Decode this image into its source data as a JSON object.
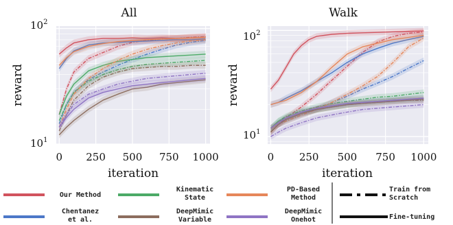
{
  "chart_data": [
    {
      "type": "line",
      "title": "All",
      "xlabel": "iteration",
      "ylabel": "reward",
      "yscale": "log",
      "xlim": [
        -20,
        1030
      ],
      "ylim": [
        10,
        105
      ],
      "xticks": [
        "0",
        "250",
        "500",
        "750",
        "1000"
      ],
      "yticks": [
        "10^1",
        "10^2"
      ],
      "grid": true,
      "series": [
        {
          "name": "Our Method",
          "variant": "Fine-tuning",
          "x": [
            0,
            50,
            100,
            200,
            300,
            400,
            500,
            600,
            700,
            800,
            900,
            1000
          ],
          "y": [
            60,
            68,
            75,
            80,
            82,
            82,
            83,
            82,
            83,
            82,
            83,
            84
          ]
        },
        {
          "name": "Our Method",
          "variant": "Train from Scratch",
          "x": [
            0,
            50,
            100,
            200,
            300,
            400,
            500,
            600,
            700,
            800,
            900,
            1000
          ],
          "y": [
            18,
            30,
            42,
            55,
            62,
            70,
            76,
            79,
            81,
            82,
            84,
            85
          ]
        },
        {
          "name": "Chentanez et al.",
          "variant": "Fine-tuning",
          "x": [
            0,
            50,
            100,
            200,
            300,
            400,
            500,
            600,
            700,
            800,
            900,
            1000
          ],
          "y": [
            45,
            55,
            64,
            72,
            75,
            76,
            77,
            78,
            79,
            80,
            80,
            81
          ]
        },
        {
          "name": "Chentanez et al.",
          "variant": "Train from Scratch",
          "x": [
            0,
            50,
            100,
            200,
            300,
            400,
            500,
            600,
            700,
            800,
            900,
            1000
          ],
          "y": [
            15,
            22,
            28,
            36,
            42,
            48,
            54,
            60,
            66,
            72,
            76,
            79
          ]
        },
        {
          "name": "Kinematic State",
          "variant": "Fine-tuning",
          "x": [
            0,
            50,
            100,
            200,
            300,
            400,
            500,
            600,
            700,
            800,
            900,
            1000
          ],
          "y": [
            18,
            26,
            33,
            43,
            48,
            52,
            54,
            56,
            57,
            58,
            59,
            60
          ]
        },
        {
          "name": "Kinematic State",
          "variant": "Train from Scratch",
          "x": [
            0,
            50,
            100,
            200,
            300,
            400,
            500,
            600,
            700,
            800,
            900,
            1000
          ],
          "y": [
            16,
            22,
            28,
            35,
            40,
            44,
            47,
            49,
            50,
            51,
            52,
            53
          ]
        },
        {
          "name": "PD-Based Method",
          "variant": "Fine-tuning",
          "x": [
            0,
            50,
            100,
            200,
            300,
            400,
            500,
            600,
            700,
            800,
            900,
            1000
          ],
          "y": [
            48,
            56,
            63,
            70,
            74,
            77,
            79,
            80,
            81,
            82,
            83,
            84
          ]
        },
        {
          "name": "PD-Based Method",
          "variant": "Train from Scratch",
          "x": [
            0,
            50,
            100,
            200,
            300,
            400,
            500,
            600,
            700,
            800,
            900,
            1000
          ],
          "y": [
            14,
            20,
            27,
            37,
            45,
            53,
            60,
            66,
            71,
            75,
            78,
            80
          ]
        },
        {
          "name": "DeepMimic Variable",
          "variant": "Fine-tuning",
          "x": [
            0,
            50,
            100,
            200,
            300,
            400,
            500,
            600,
            700,
            800,
            900,
            1000
          ],
          "y": [
            12,
            14,
            16,
            20,
            24,
            27,
            30,
            31,
            33,
            34,
            35,
            36
          ]
        },
        {
          "name": "DeepMimic Variable",
          "variant": "Train from Scratch",
          "x": [
            0,
            50,
            100,
            200,
            300,
            400,
            500,
            600,
            700,
            800,
            900,
            1000
          ],
          "y": [
            13,
            18,
            24,
            32,
            38,
            42,
            45,
            46,
            47,
            47,
            48,
            48
          ]
        },
        {
          "name": "DeepMimic Onehot",
          "variant": "Fine-tuning",
          "x": [
            0,
            50,
            100,
            200,
            300,
            400,
            500,
            600,
            700,
            800,
            900,
            1000
          ],
          "y": [
            14,
            17,
            20,
            25,
            28,
            30,
            32,
            33,
            34,
            35,
            36,
            37
          ]
        },
        {
          "name": "DeepMimic Onehot",
          "variant": "Train from Scratch",
          "x": [
            0,
            50,
            100,
            200,
            300,
            400,
            500,
            600,
            700,
            800,
            900,
            1000
          ],
          "y": [
            14,
            18,
            22,
            27,
            30,
            33,
            35,
            37,
            38,
            39,
            40,
            41
          ]
        }
      ]
    },
    {
      "type": "line",
      "title": "Walk",
      "xlabel": "iteration",
      "ylabel": "reward",
      "yscale": "log",
      "xlim": [
        -20,
        1030
      ],
      "ylim": [
        8.5,
        110
      ],
      "xticks": [
        "0",
        "250",
        "500",
        "750",
        "1000"
      ],
      "yticks": [
        "10^1",
        "10^2"
      ],
      "grid": true,
      "series": [
        {
          "name": "Our Method",
          "variant": "Fine-tuning",
          "x": [
            0,
            50,
            100,
            150,
            200,
            250,
            300,
            400,
            500,
            600,
            700,
            800,
            900,
            1000
          ],
          "y": [
            28,
            34,
            45,
            60,
            72,
            82,
            88,
            92,
            94,
            95,
            96,
            97,
            98,
            99
          ]
        },
        {
          "name": "Our Method",
          "variant": "Train from Scratch",
          "x": [
            0,
            50,
            100,
            200,
            300,
            400,
            500,
            600,
            700,
            800,
            900,
            1000
          ],
          "y": [
            11,
            13,
            15,
            19,
            25,
            34,
            46,
            62,
            78,
            88,
            94,
            97
          ]
        },
        {
          "name": "Chentanez et al.",
          "variant": "Fine-tuning",
          "x": [
            0,
            50,
            100,
            200,
            300,
            400,
            500,
            600,
            700,
            800,
            900,
            1000
          ],
          "y": [
            20,
            21,
            23,
            27,
            33,
            40,
            50,
            60,
            68,
            76,
            82,
            88
          ]
        },
        {
          "name": "Chentanez et al.",
          "variant": "Train from Scratch",
          "x": [
            0,
            50,
            100,
            200,
            300,
            400,
            500,
            600,
            700,
            800,
            900,
            1000
          ],
          "y": [
            12,
            13,
            14,
            16,
            18,
            21,
            24,
            28,
            32,
            37,
            44,
            52
          ]
        },
        {
          "name": "Kinematic State",
          "variant": "Fine-tuning",
          "x": [
            0,
            50,
            100,
            200,
            300,
            400,
            500,
            600,
            700,
            800,
            900,
            1000
          ],
          "y": [
            12,
            14,
            15,
            17,
            18,
            19,
            20,
            21,
            21.5,
            22,
            22.5,
            23
          ]
        },
        {
          "name": "Kinematic State",
          "variant": "Train from Scratch",
          "x": [
            0,
            50,
            100,
            200,
            300,
            400,
            500,
            600,
            700,
            800,
            900,
            1000
          ],
          "y": [
            12,
            14,
            15.5,
            17.5,
            19,
            20.5,
            21.5,
            22.5,
            23.5,
            24,
            25,
            26
          ]
        },
        {
          "name": "PD-Based Method",
          "variant": "Fine-tuning",
          "x": [
            0,
            50,
            100,
            200,
            300,
            400,
            500,
            600,
            700,
            800,
            900,
            1000
          ],
          "y": [
            20,
            21,
            22,
            26,
            33,
            45,
            60,
            70,
            76,
            82,
            86,
            90
          ]
        },
        {
          "name": "PD-Based Method",
          "variant": "Train from Scratch",
          "x": [
            0,
            50,
            100,
            200,
            300,
            400,
            500,
            600,
            700,
            800,
            900,
            1000
          ],
          "y": [
            12,
            13,
            14,
            16,
            18,
            21,
            25,
            30,
            37,
            50,
            70,
            85
          ]
        },
        {
          "name": "DeepMimic Variable",
          "variant": "Fine-tuning",
          "x": [
            0,
            50,
            100,
            200,
            300,
            400,
            500,
            600,
            700,
            800,
            900,
            1000
          ],
          "y": [
            11,
            13,
            14.5,
            16.5,
            18,
            19,
            20,
            20.5,
            21,
            21.5,
            22,
            22.5
          ]
        },
        {
          "name": "DeepMimic Variable",
          "variant": "Train from Scratch",
          "x": [
            0,
            50,
            100,
            200,
            300,
            400,
            500,
            600,
            700,
            800,
            900,
            1000
          ],
          "y": [
            11,
            13,
            14.5,
            16.5,
            18,
            19,
            20,
            20.5,
            21,
            21.5,
            22,
            22
          ]
        },
        {
          "name": "DeepMimic Onehot",
          "variant": "Fine-tuning",
          "x": [
            0,
            50,
            100,
            200,
            300,
            400,
            500,
            600,
            700,
            800,
            900,
            1000
          ],
          "y": [
            12,
            13.5,
            15,
            17,
            18.5,
            19.5,
            20.5,
            21,
            21.5,
            22,
            22.5,
            23
          ]
        },
        {
          "name": "DeepMimic Onehot",
          "variant": "Train from Scratch",
          "x": [
            0,
            50,
            100,
            200,
            300,
            400,
            500,
            600,
            700,
            800,
            900,
            1000
          ],
          "y": [
            10,
            11,
            12,
            13.5,
            15,
            16,
            17,
            18,
            18.5,
            19,
            19.5,
            20
          ]
        }
      ]
    }
  ],
  "colors": {
    "Our Method": "#d1535e",
    "Chentanez et al.": "#4c78c8",
    "Kinematic State": "#4caa67",
    "PD-Based Method": "#e6875a",
    "DeepMimic Variable": "#8c6d5e",
    "DeepMimic Onehot": "#8f74c4",
    "axes_bg": "#eaeaf2",
    "grid": "#ffffff"
  },
  "legend": {
    "methods": [
      {
        "label": "Our Method",
        "lines": [
          "Our Method"
        ]
      },
      {
        "label": "Kinematic State",
        "lines": [
          "Kinematic",
          "State"
        ]
      },
      {
        "label": "PD-Based Method",
        "lines": [
          "PD-Based",
          "Method"
        ]
      },
      {
        "label": "Chentanez et al.",
        "lines": [
          "Chentanez",
          "et al."
        ]
      },
      {
        "label": "DeepMimic Variable",
        "lines": [
          "DeepMimic",
          "Variable"
        ]
      },
      {
        "label": "DeepMimic Onehot",
        "lines": [
          "DeepMimic",
          "Onehot"
        ]
      }
    ],
    "styles": [
      {
        "label": "Train from Scratch",
        "lines": [
          "Train from",
          "Scratch"
        ],
        "dash": true
      },
      {
        "label": "Fine-tuning",
        "lines": [
          "Fine-tuning"
        ],
        "dash": false
      }
    ]
  }
}
